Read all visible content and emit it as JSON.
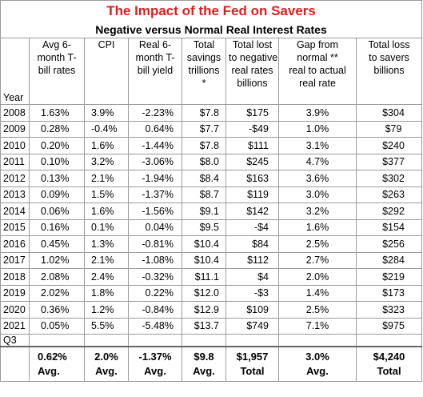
{
  "title": "The Impact of the Fed on Savers",
  "subtitle": "Negative versus Normal Real Interest Rates",
  "year_header": "Year",
  "headers": [
    [
      "Avg 6-",
      "month T-",
      "bill rates"
    ],
    [
      "CPI"
    ],
    [
      "Real 6-",
      "month T-",
      "bill yield"
    ],
    [
      "Total",
      "savings",
      "trillions",
      "*"
    ],
    [
      "Total lost",
      "to negative",
      "real rates",
      "billions"
    ],
    [
      "Gap from",
      "normal **",
      "real to actual",
      "real rate"
    ],
    [
      "Total loss",
      "to savers",
      "billions"
    ]
  ],
  "rows": [
    [
      "2008",
      "1.63%",
      "3.9%",
      "-2.23%",
      "$7.8",
      "$175",
      "3.9%",
      "$304"
    ],
    [
      "2009",
      "0.28%",
      "-0.4%",
      "0.64%",
      "$7.7",
      "-$49",
      "1.0%",
      "$79"
    ],
    [
      "2010",
      "0.20%",
      "1.6%",
      "-1.44%",
      "$7.8",
      "$111",
      "3.1%",
      "$240"
    ],
    [
      "2011",
      "0.10%",
      "3.2%",
      "-3.06%",
      "$8.0",
      "$245",
      "4.7%",
      "$377"
    ],
    [
      "2012",
      "0.13%",
      "2.1%",
      "-1.94%",
      "$8.4",
      "$163",
      "3.6%",
      "$302"
    ],
    [
      "2013",
      "0.09%",
      "1.5%",
      "-1.37%",
      "$8.7",
      "$119",
      "3.0%",
      "$263"
    ],
    [
      "2014",
      "0.06%",
      "1.6%",
      "-1.56%",
      "$9.1",
      "$142",
      "3.2%",
      "$292"
    ],
    [
      "2015",
      "0.16%",
      "0.1%",
      "0.04%",
      "$9.5",
      "-$4",
      "1.6%",
      "$154"
    ],
    [
      "2016",
      "0.45%",
      "1.3%",
      "-0.81%",
      "$10.4",
      "$84",
      "2.5%",
      "$256"
    ],
    [
      "2017",
      "1.02%",
      "2.1%",
      "-1.08%",
      "$10.4",
      "$112",
      "2.7%",
      "$284"
    ],
    [
      "2018",
      "2.08%",
      "2.4%",
      "-0.32%",
      "$11.1",
      "$4",
      "2.0%",
      "$219"
    ],
    [
      "2019",
      "2.02%",
      "1.8%",
      "0.22%",
      "$12.0",
      "-$3",
      "1.4%",
      "$173"
    ],
    [
      "2020",
      "0.36%",
      "1.2%",
      "-0.84%",
      "$12.9",
      "$109",
      "2.5%",
      "$323"
    ],
    [
      "2021",
      "0.05%",
      "5.5%",
      "-5.48%",
      "$13.7",
      "$749",
      "7.1%",
      "$975"
    ]
  ],
  "row_note": "Q3",
  "summary": {
    "values": [
      "0.62%",
      "2.0%",
      "-1.37%",
      "$9.8",
      "$1,957",
      "3.0%",
      "$4,240"
    ],
    "labels": [
      "Avg.",
      "Avg.",
      "Avg.",
      "Avg.",
      "Total",
      "Avg.",
      "Total"
    ]
  }
}
